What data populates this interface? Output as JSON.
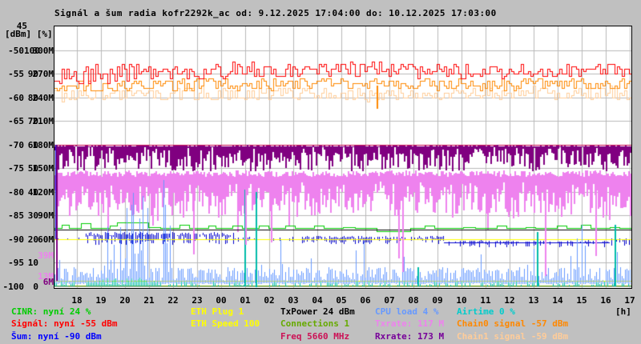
{
  "title": "Signál a šum radia kofr2292k_ac od: 9.12.2025 17:04:00 do: 10.12.2025 17:03:00",
  "axes": {
    "top_tick": "45",
    "unit_label": "[dBm] [%]",
    "hour_unit_label": "[h]",
    "rows": [
      {
        "dbm": "-50",
        "pct": "100",
        "mbit": "300M"
      },
      {
        "dbm": "-55",
        "pct": "90",
        "mbit": "270M"
      },
      {
        "dbm": "-60",
        "pct": "80",
        "mbit": "240M"
      },
      {
        "dbm": "-65",
        "pct": "70",
        "mbit": "210M"
      },
      {
        "dbm": "-70",
        "pct": "60",
        "mbit": "180M"
      },
      {
        "dbm": "-75",
        "pct": "50",
        "mbit": "150M"
      },
      {
        "dbm": "-80",
        "pct": "40",
        "mbit": "120M"
      },
      {
        "dbm": "-85",
        "pct": "30",
        "mbit": "90M"
      },
      {
        "dbm": "-90",
        "pct": "20",
        "mbit": "60M"
      },
      {
        "dbm": "-95",
        "pct": "10",
        "mbit": ""
      },
      {
        "dbm": "-100",
        "pct": "0",
        "mbit": ""
      }
    ],
    "extra_mbit_ticks": [
      {
        "text": "39M",
        "value_m": 39,
        "color": "#ee82ee"
      },
      {
        "text": "13M",
        "value_m": 13,
        "color": "#ee82ee"
      },
      {
        "text": "6M",
        "value_m": 6,
        "color": "#800080"
      }
    ],
    "hours": [
      "18",
      "19",
      "20",
      "21",
      "22",
      "23",
      "00",
      "01",
      "02",
      "03",
      "04",
      "05",
      "06",
      "07",
      "08",
      "09",
      "10",
      "11",
      "12",
      "13",
      "14",
      "15",
      "16",
      "17"
    ]
  },
  "legend": [
    {
      "text": "CINR: nyní 24 %",
      "color": "#00cc00",
      "col": 0,
      "row": 0
    },
    {
      "text": "Signál: nyní -55 dBm",
      "color": "#ff0000",
      "col": 0,
      "row": 1
    },
    {
      "text": "Šum: nyní -90 dBm",
      "color": "#0000ff",
      "col": 0,
      "row": 2
    },
    {
      "text": "ETH Plug 1",
      "color": "#ffff00",
      "col": 1,
      "row": 0
    },
    {
      "text": "ETH Speed 100",
      "color": "#ffff00",
      "col": 1,
      "row": 1
    },
    {
      "text": "TxPower 24 dBm",
      "color": "#000000",
      "col": 2,
      "row": 0
    },
    {
      "text": "Connections 1",
      "color": "#66aa00",
      "col": 2,
      "row": 1
    },
    {
      "text": "Freq 5660 MHz",
      "color": "#cc1155",
      "col": 2,
      "row": 2
    },
    {
      "text": "CPU load 4 %",
      "color": "#6699ff",
      "col": 3,
      "row": 0
    },
    {
      "text": "Txrate: 117 M",
      "color": "#ee82ee",
      "col": 3,
      "row": 1
    },
    {
      "text": "Rxrate: 173 M",
      "color": "#770099",
      "col": 3,
      "row": 2
    },
    {
      "text": "Airtime 0 %",
      "color": "#00cccc",
      "col": 4,
      "row": 0
    },
    {
      "text": "Chain0 signal -57 dBm",
      "color": "#ff8800",
      "col": 4,
      "row": 1
    },
    {
      "text": "Chain1 signal -59 dBm",
      "color": "#ffcc99",
      "col": 4,
      "row": 2
    }
  ],
  "chart_data": {
    "type": "line",
    "x_axis": {
      "start": "17:04",
      "end": "17:03",
      "span_hours": 24,
      "tick_interval_h": 1
    },
    "scales": {
      "dbm": {
        "min": -100,
        "max": -45
      },
      "pct": {
        "min": 0,
        "max": 100,
        "pct100_at_dbm": -50
      },
      "mbit": {
        "min": 0,
        "max": 300,
        "m300_at_dbm": -50
      }
    },
    "grid": true,
    "series": [
      {
        "name": "signal",
        "unit": "dBm",
        "color": "#ff0000",
        "style": "noisy-step",
        "current": -55,
        "hourly": [
          -55.4,
          -55.0,
          -55.3,
          -55.0,
          -54.8,
          -55.0,
          -54.6,
          -54.4,
          -54.2,
          -54.5,
          -54.2,
          -54.4,
          -54.2,
          -54.0,
          -54.3,
          -54.4,
          -54.2,
          -54.5,
          -54.3,
          -54.4,
          -54.2,
          -54.4,
          -54.3,
          -54.2,
          -54.5
        ],
        "noise_amp": [
          2.0,
          2.2,
          2.1,
          2.0,
          1.9,
          1.8,
          1.8,
          1.8,
          1.7,
          1.6,
          1.6,
          1.6,
          1.5,
          1.5,
          1.5,
          1.4,
          1.4,
          1.4,
          1.4,
          1.4,
          1.3,
          1.3,
          1.3,
          1.3
        ]
      },
      {
        "name": "chain0_signal",
        "unit": "dBm",
        "color": "#ff8800",
        "style": "noisy-step",
        "current": -57,
        "hourly": [
          -57.6,
          -57.4,
          -57.5,
          -57.3,
          -57.2,
          -57.4,
          -57.2,
          -57.0,
          -57.2,
          -57.3,
          -57.1,
          -57.2,
          -57.0,
          -57.3,
          -57.2,
          -57.1,
          -57.3,
          -57.2,
          -57.4,
          -57.2,
          -57.1,
          -57.3,
          -57.2,
          -57.1,
          -57.2
        ],
        "noise_amp": 1.2,
        "dip": {
          "t": 13.4,
          "dbm": -62.5
        }
      },
      {
        "name": "chain1_signal",
        "unit": "dBm",
        "color": "#ffcc99",
        "style": "noisy-step",
        "current": -59,
        "hourly": [
          -59.4,
          -59.6,
          -59.5,
          -59.2,
          -59.3,
          -59.1,
          -59.0,
          -59.2,
          -59.3,
          -59.1,
          -59.2,
          -59.0,
          -59.2,
          -59.4,
          -59.2,
          -59.1,
          -59.2,
          -59.3,
          -59.1,
          -59.2,
          -59.0,
          -59.2,
          -59.1,
          -59.0,
          -59.2
        ],
        "noise_amp": 1.4
      },
      {
        "name": "noise",
        "unit": "dBm",
        "color": "#0000cc",
        "style": "tick-band",
        "current": -90,
        "start_spike_dbm": [
          -70,
          -90
        ],
        "segments": [
          {
            "t0": 0,
            "t1": 1.3,
            "base": -90.0,
            "up": 0.3,
            "dn": 0.4,
            "den": 0.25
          },
          {
            "t0": 1.3,
            "t1": 7.5,
            "base": -89.3,
            "up": 0.7,
            "dn": 2.0,
            "den": 0.85
          },
          {
            "t0": 7.5,
            "t1": 10.3,
            "base": -90.0,
            "up": 0.4,
            "dn": 0.6,
            "den": 0.2
          },
          {
            "t0": 10.3,
            "t1": 16.2,
            "base": -89.9,
            "up": 0.5,
            "dn": 1.2,
            "den": 0.75
          },
          {
            "t0": 16.2,
            "t1": 23.1,
            "base": -90.7,
            "up": 0.4,
            "dn": 1.1,
            "den": 0.55,
            "line": true
          },
          {
            "t0": 23.1,
            "t1": 24,
            "base": -90.3,
            "up": 0.5,
            "dn": 1.3,
            "den": 0.5
          }
        ]
      },
      {
        "name": "cinr",
        "unit": "%",
        "color": "#00cc00",
        "style": "step",
        "current": 24,
        "breakpoints": [
          [
            0,
            24.5
          ],
          [
            0.3,
            26
          ],
          [
            0.6,
            24.5
          ],
          [
            1.1,
            26.5
          ],
          [
            1.5,
            24.5
          ],
          [
            2.3,
            25.5
          ],
          [
            2.6,
            27
          ],
          [
            3.5,
            27
          ],
          [
            3.9,
            25
          ],
          [
            4.4,
            24.5
          ],
          [
            5.2,
            26
          ],
          [
            5.6,
            24.5
          ],
          [
            6.4,
            25.5
          ],
          [
            6.7,
            24.5
          ],
          [
            7.4,
            25.5
          ],
          [
            7.8,
            24.5
          ],
          [
            8.5,
            25.5
          ],
          [
            8.9,
            24.5
          ],
          [
            9.6,
            25.5
          ],
          [
            10,
            24.5
          ],
          [
            10.8,
            25.5
          ],
          [
            11.2,
            24.5
          ],
          [
            12,
            25
          ],
          [
            12.5,
            24.5
          ],
          [
            13.4,
            23.2
          ],
          [
            14.8,
            24.5
          ],
          [
            15.4,
            25.5
          ],
          [
            15.8,
            24.5
          ],
          [
            17,
            25
          ],
          [
            17.5,
            24.5
          ],
          [
            18.4,
            25.5
          ],
          [
            18.8,
            24.5
          ],
          [
            19.6,
            25
          ],
          [
            20,
            24.5
          ],
          [
            20.9,
            25.5
          ],
          [
            21.3,
            24.5
          ],
          [
            21.9,
            26
          ],
          [
            22.3,
            24.5
          ],
          [
            23.1,
            25
          ],
          [
            23.5,
            24.5
          ],
          [
            24,
            24.5
          ]
        ]
      },
      {
        "name": "txpower",
        "unit": "dBm",
        "color": "#000000",
        "style": "flat",
        "value": 24,
        "plotted_at_pct": 24
      },
      {
        "name": "freq",
        "unit": "MHz",
        "color": "#cc1155",
        "style": "flat",
        "value": 5660,
        "plotted_at_mbit": 180
      },
      {
        "name": "rxrate",
        "unit": "M",
        "color": "#800080",
        "style": "range-bars",
        "current": 173,
        "band_top_m": 179,
        "band_min_typical_m": [
          146,
          178
        ],
        "dips": [
          {
            "t": 0.05,
            "m": 6
          }
        ]
      },
      {
        "name": "txrate",
        "unit": "M",
        "color": "#ee82ee",
        "style": "range-bars",
        "current": 117,
        "band_m": [
          93,
          147
        ],
        "dips": [
          {
            "t": 5.75,
            "m": 40
          },
          {
            "t": 7.93,
            "m": 52
          },
          {
            "t": 9.0,
            "m": 55
          },
          {
            "t": 14.3,
            "m": 35
          },
          {
            "t": 14.45,
            "m": 18
          },
          {
            "t": 20.4,
            "m": 13
          },
          {
            "t": 22.5,
            "m": 38
          }
        ]
      },
      {
        "name": "cpu_load",
        "unit": "%",
        "color": "#6699ff",
        "style": "spikes",
        "current": 4,
        "base_range": [
          2,
          8
        ],
        "spike_zones": [
          {
            "t0": 1.8,
            "t1": 4.8,
            "p": 0.3,
            "max": 45
          },
          {
            "t0": 8.3,
            "t1": 9.4,
            "p": 0.15,
            "max": 25
          },
          {
            "t0": 12.5,
            "t1": 13.0,
            "p": 0.2,
            "max": 20
          },
          {
            "t0": 19.3,
            "t1": 20.3,
            "p": 0.12,
            "max": 22
          },
          {
            "t0": 21.7,
            "t1": 22.3,
            "p": 0.25,
            "max": 28
          },
          {
            "t0": 23.1,
            "t1": 23.6,
            "p": 0.2,
            "max": 20
          }
        ]
      },
      {
        "name": "airtime",
        "unit": "%",
        "color": "#00bbaa",
        "style": "spikes",
        "current": 0,
        "base_range": [
          0,
          2
        ],
        "dense_zone": {
          "t0": 1.5,
          "t1": 4.2,
          "max": 3
        },
        "spikes": [
          {
            "t": 7.9,
            "pct": 41
          },
          {
            "t": 8.35,
            "pct": 40
          },
          {
            "t": 15.1,
            "pct": 8
          },
          {
            "t": 20.05,
            "pct": 23
          },
          {
            "t": 23.3,
            "pct": 26
          }
        ]
      },
      {
        "name": "eth_plug",
        "color": "#ffff00",
        "style": "flat",
        "value": 1,
        "plotted_at_mbit": 59
      },
      {
        "name": "eth_speed",
        "color": "#ffff00",
        "style": "flat",
        "value": 100,
        "plotted_at_mbit": 7
      },
      {
        "name": "connections",
        "color": "#66aa00",
        "style": "flat",
        "value": 1,
        "plotted_at_mbit": 1
      }
    ]
  }
}
